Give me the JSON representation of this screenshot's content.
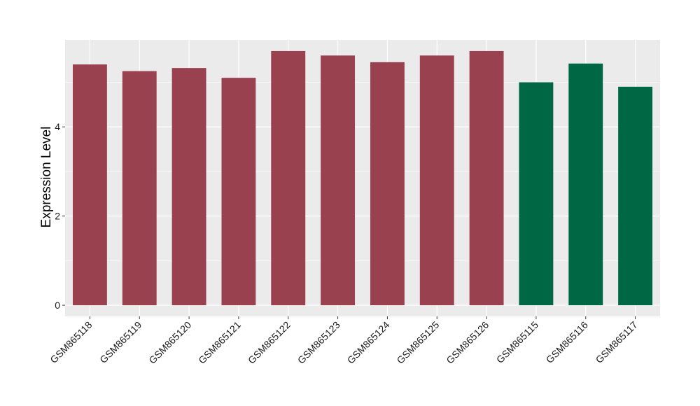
{
  "chart_data": {
    "type": "bar",
    "title": "",
    "xlabel": "",
    "ylabel": "Expression Level",
    "ylim": [
      -0.25,
      5.95
    ],
    "yticks": [
      0,
      2,
      4
    ],
    "grid": true,
    "categories": [
      "GSM865118",
      "GSM865119",
      "GSM865120",
      "GSM865121",
      "GSM865122",
      "GSM865123",
      "GSM865124",
      "GSM865125",
      "GSM865126",
      "GSM865115",
      "GSM865116",
      "GSM865117"
    ],
    "values": [
      5.4,
      5.25,
      5.32,
      5.1,
      5.7,
      5.6,
      5.45,
      5.6,
      5.7,
      5.0,
      5.42,
      4.9
    ],
    "groups": [
      "a",
      "a",
      "a",
      "a",
      "a",
      "a",
      "a",
      "a",
      "a",
      "b",
      "b",
      "b"
    ],
    "colors": {
      "a": "#9a4150",
      "b": "#006745"
    },
    "panel_background": "#ebebeb",
    "gridline_color": "#ffffff"
  }
}
